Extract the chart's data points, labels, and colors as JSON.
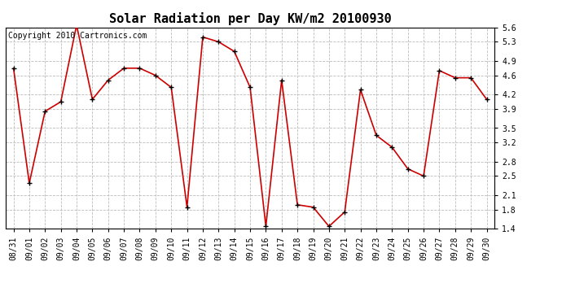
{
  "title": "Solar Radiation per Day KW/m2 20100930",
  "copyright": "Copyright 2010 Cartronics.com",
  "dates": [
    "08/31",
    "09/01",
    "09/02",
    "09/03",
    "09/04",
    "09/05",
    "09/06",
    "09/07",
    "09/08",
    "09/09",
    "09/10",
    "09/11",
    "09/12",
    "09/13",
    "09/14",
    "09/15",
    "09/16",
    "09/17",
    "09/18",
    "09/19",
    "09/20",
    "09/21",
    "09/22",
    "09/23",
    "09/24",
    "09/25",
    "09/26",
    "09/27",
    "09/28",
    "09/29",
    "09/30"
  ],
  "values": [
    4.75,
    2.35,
    3.85,
    4.05,
    5.65,
    4.1,
    4.5,
    4.75,
    4.75,
    4.6,
    4.35,
    1.85,
    5.4,
    5.3,
    5.1,
    4.35,
    1.45,
    4.5,
    1.9,
    1.85,
    1.45,
    1.75,
    4.3,
    3.35,
    3.1,
    2.65,
    2.5,
    4.7,
    4.55,
    4.55,
    4.1
  ],
  "ylim": [
    1.4,
    5.6
  ],
  "yticks": [
    1.4,
    1.8,
    2.1,
    2.5,
    2.8,
    3.2,
    3.5,
    3.9,
    4.2,
    4.6,
    4.9,
    5.3,
    5.6
  ],
  "line_color": "#cc0000",
  "marker_color": "#000000",
  "bg_color": "#ffffff",
  "plot_bg_color": "#ffffff",
  "grid_color": "#bbbbbb",
  "title_fontsize": 11,
  "tick_fontsize": 7,
  "copyright_fontsize": 7
}
